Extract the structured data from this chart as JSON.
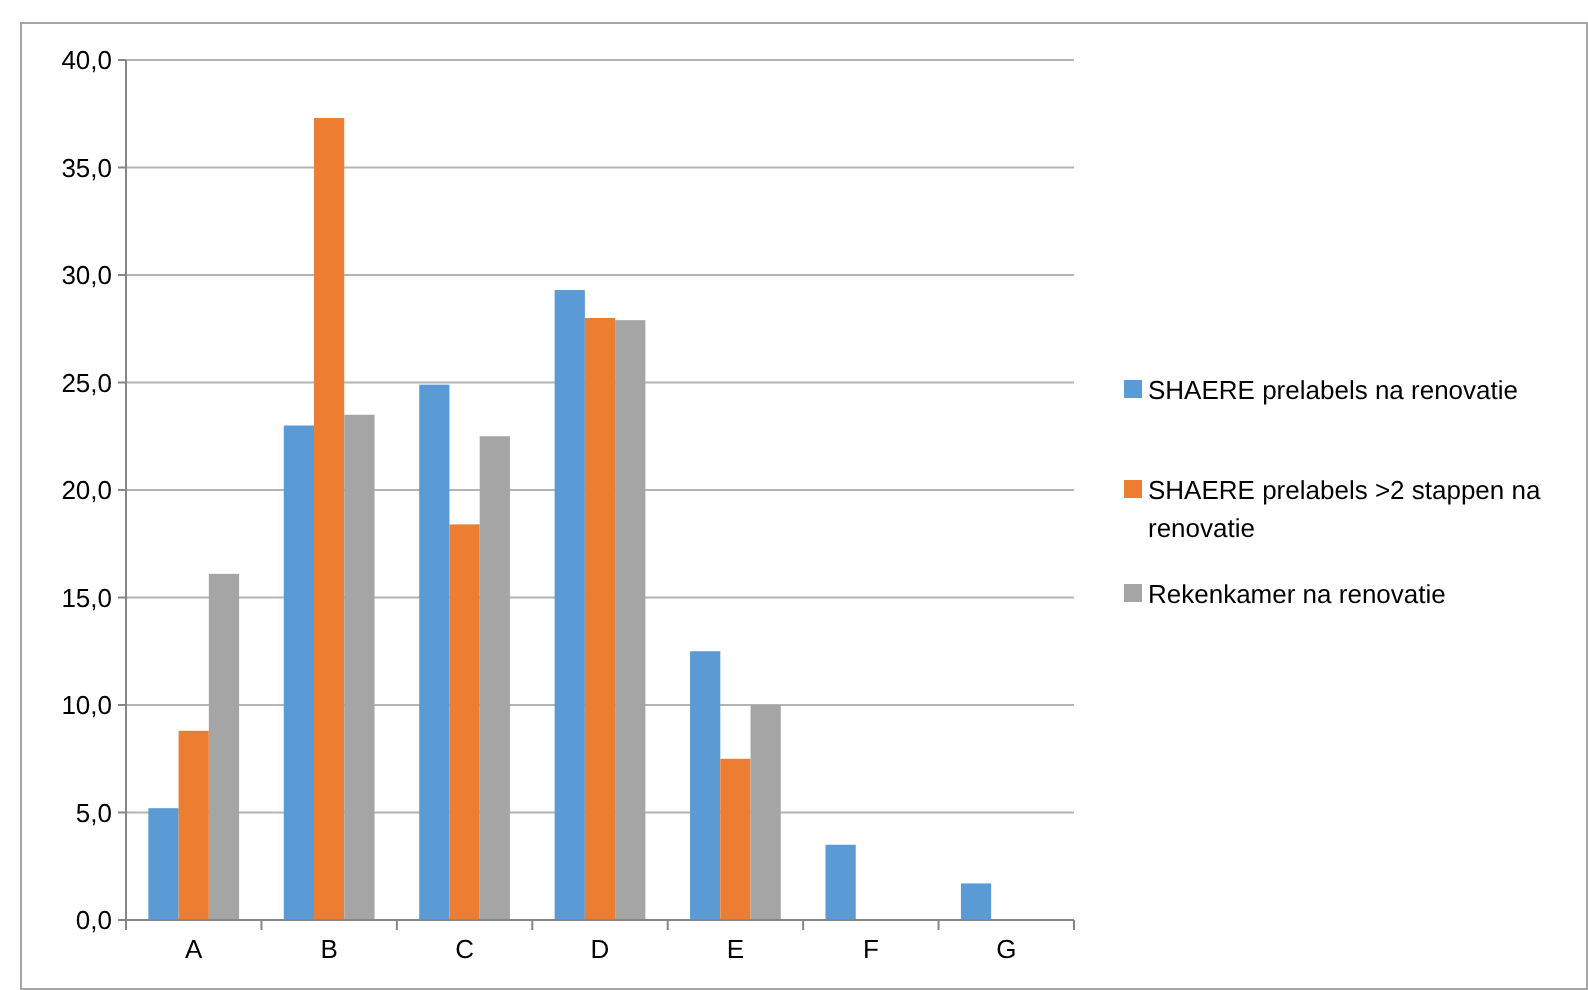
{
  "chart_data": {
    "type": "bar",
    "categories": [
      "A",
      "B",
      "C",
      "D",
      "E",
      "F",
      "G"
    ],
    "series": [
      {
        "name": "SHAERE prelabels na renovatie",
        "color": "#5b9bd5",
        "values": [
          5.2,
          23.0,
          24.9,
          29.3,
          12.5,
          3.5,
          1.7
        ]
      },
      {
        "name": "SHAERE prelabels >2 stappen na renovatie",
        "color": "#ed7d31",
        "values": [
          8.8,
          37.3,
          18.4,
          28.0,
          7.5,
          0,
          0
        ]
      },
      {
        "name": "Rekenkamer na renovatie",
        "color": "#a5a5a5",
        "values": [
          16.1,
          23.5,
          22.5,
          27.9,
          10.0,
          0,
          0
        ]
      }
    ],
    "ylim": [
      0,
      40
    ],
    "yticks": [
      {
        "value": 0,
        "label": "0,0"
      },
      {
        "value": 5,
        "label": "5,0"
      },
      {
        "value": 10,
        "label": "10,0"
      },
      {
        "value": 15,
        "label": "15,0"
      },
      {
        "value": 20,
        "label": "20,0"
      },
      {
        "value": 25,
        "label": "25,0"
      },
      {
        "value": 30,
        "label": "30,0"
      },
      {
        "value": 35,
        "label": "35,0"
      },
      {
        "value": 40,
        "label": "40,0"
      }
    ],
    "grid": "y",
    "legend": "right"
  }
}
